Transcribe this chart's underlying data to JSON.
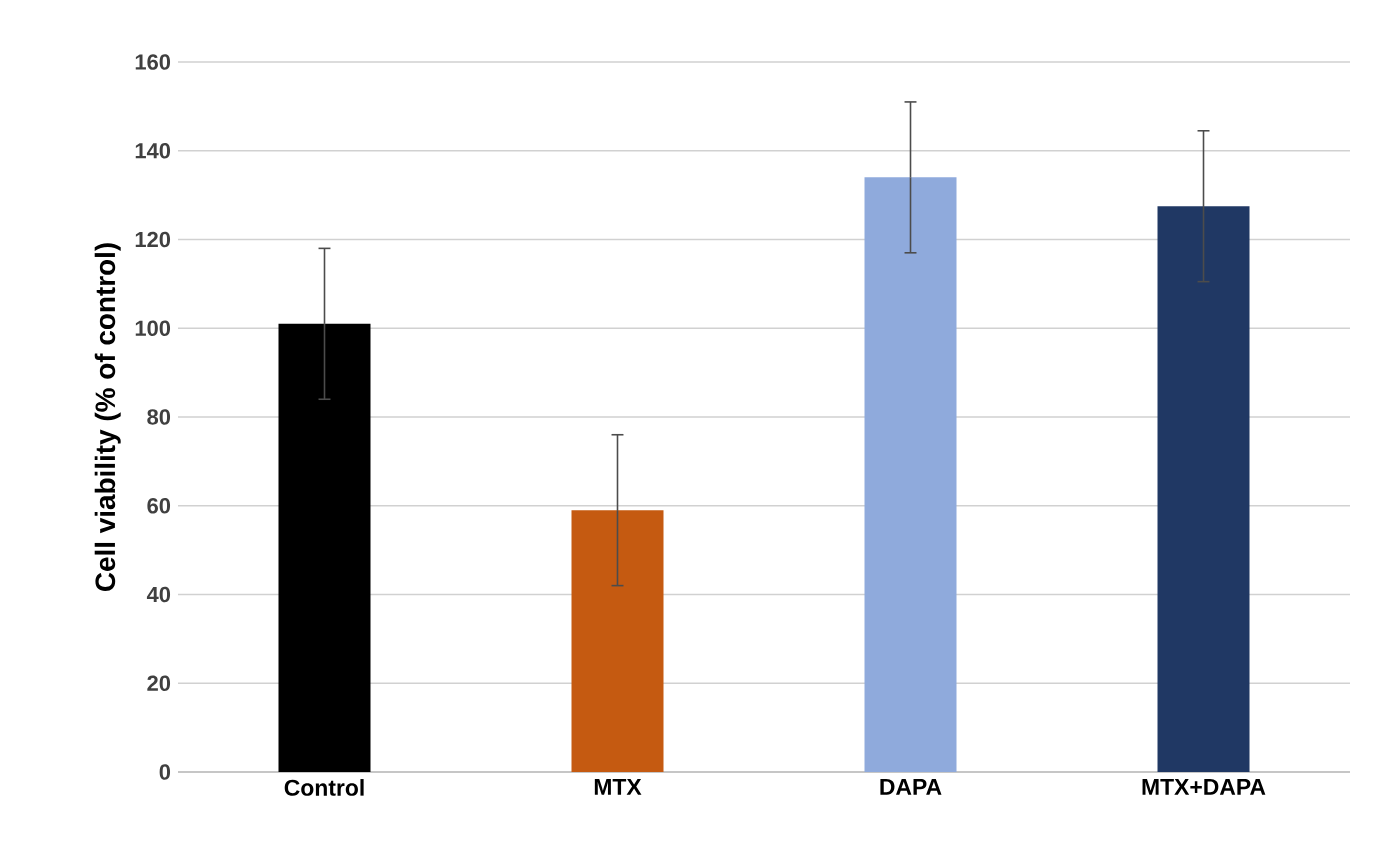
{
  "chart_data": {
    "type": "bar",
    "ylabel": "Cell viability (% of control)",
    "categories": [
      "Control",
      "MTX",
      "DAPA",
      "MTX+DAPA"
    ],
    "values": [
      101,
      59,
      134,
      127.5
    ],
    "colors": [
      "#000000",
      "#c55a11",
      "#8faadc",
      "#203864"
    ],
    "errors": [
      17,
      17,
      17,
      17
    ],
    "ylim": [
      0,
      160
    ],
    "yticks": [
      0,
      20,
      40,
      60,
      80,
      100,
      120,
      140,
      160
    ],
    "grid": "y"
  }
}
